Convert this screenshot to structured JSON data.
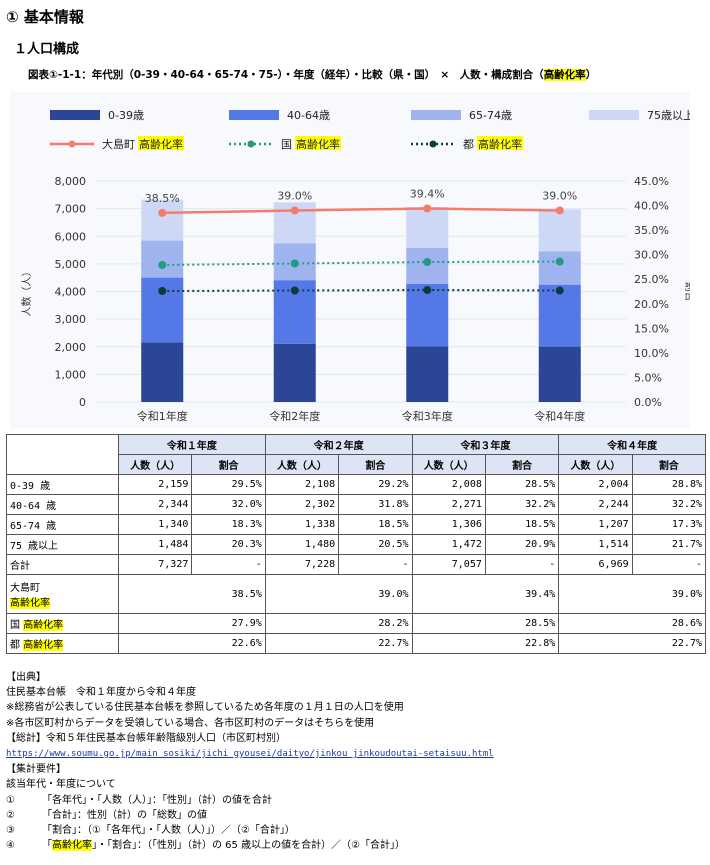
{
  "section_title": "① 基本情報",
  "subsection_title": "１人口構成",
  "figure_caption": {
    "prefix": "図表①-1-1：年代別（0-39・40-64・65-74・75-）・年度（経年）・比較（県・国）　×　人数・構成割合（",
    "highlight": "高齢化率",
    "suffix": "）"
  },
  "colors": {
    "age_0_39": "#2b4597",
    "age_40_64": "#5478e6",
    "age_65_74": "#9fb3ef",
    "age_75_plus": "#cdd8f6",
    "oshima": "#f47c6a",
    "country": "#229b82",
    "tokyo": "#0d3b3a",
    "highlight": "#ffff00",
    "table_header": "#dde4f4"
  },
  "chart_data": {
    "type": "bar",
    "stacked": true,
    "categories": [
      "令和1年度",
      "令和2年度",
      "令和3年度",
      "令和4年度"
    ],
    "series": [
      {
        "name": "0-39歳",
        "values": [
          2159,
          2108,
          2008,
          2004
        ]
      },
      {
        "name": "40-64歳",
        "values": [
          2344,
          2302,
          2271,
          2244
        ]
      },
      {
        "name": "65-74歳",
        "values": [
          1340,
          1338,
          1306,
          1207
        ]
      },
      {
        "name": "75歳以上",
        "values": [
          1484,
          1480,
          1472,
          1514
        ]
      }
    ],
    "line_series": [
      {
        "name_prefix": "大島町 ",
        "name_hl": "高齢化率",
        "values": [
          38.5,
          39.0,
          39.4,
          39.0
        ],
        "style": "solid",
        "labels": [
          "38.5%",
          "39.0%",
          "39.4%",
          "39.0%"
        ]
      },
      {
        "name_prefix": "国 ",
        "name_hl": "高齢化率",
        "values": [
          27.9,
          28.2,
          28.5,
          28.6
        ],
        "style": "dotted"
      },
      {
        "name_prefix": "都 ",
        "name_hl": "高齢化率",
        "values": [
          22.6,
          22.7,
          22.8,
          22.7
        ],
        "style": "dotted"
      }
    ],
    "ylabel": "人数（人）",
    "y2label": "割合",
    "ylim": [
      0,
      8000
    ],
    "y2lim": [
      0,
      45
    ],
    "yticks": [
      "0",
      "1,000",
      "2,000",
      "3,000",
      "4,000",
      "5,000",
      "6,000",
      "7,000",
      "8,000"
    ],
    "y2ticks": [
      "0.0%",
      "5.0%",
      "10.0%",
      "15.0%",
      "20.0%",
      "25.0%",
      "30.0%",
      "35.0%",
      "40.0%",
      "45.0%"
    ],
    "grid": true,
    "legend_position": "top"
  },
  "table": {
    "years": [
      "令和１年度",
      "令和２年度",
      "令和３年度",
      "令和４年度"
    ],
    "sub_headers": [
      "人数（人）",
      "割合"
    ],
    "rows": [
      {
        "label": "0-39 歳",
        "cells": [
          "2,159",
          "29.5%",
          "2,108",
          "29.2%",
          "2,008",
          "28.5%",
          "2,004",
          "28.8%"
        ]
      },
      {
        "label": "40-64 歳",
        "cells": [
          "2,344",
          "32.0%",
          "2,302",
          "31.8%",
          "2,271",
          "32.2%",
          "2,244",
          "32.2%"
        ]
      },
      {
        "label": "65-74 歳",
        "cells": [
          "1,340",
          "18.3%",
          "1,338",
          "18.5%",
          "1,306",
          "18.5%",
          "1,207",
          "17.3%"
        ]
      },
      {
        "label": "75 歳以上",
        "cells": [
          "1,484",
          "20.3%",
          "1,480",
          "20.5%",
          "1,472",
          "20.9%",
          "1,514",
          "21.7%"
        ]
      },
      {
        "label": "合計",
        "cells": [
          "7,327",
          "-",
          "7,228",
          "-",
          "7,057",
          "-",
          "6,969",
          "-"
        ]
      }
    ],
    "rate_rows": [
      {
        "prefix": "大島町",
        "hl": "高齢化率",
        "values": [
          "38.5%",
          "39.0%",
          "39.4%",
          "39.0%"
        ],
        "tall": true
      },
      {
        "prefix": "国 ",
        "hl": "高齢化率",
        "values": [
          "27.9%",
          "28.2%",
          "28.5%",
          "28.6%"
        ]
      },
      {
        "prefix": "都 ",
        "hl": "高齢化率",
        "values": [
          "22.6%",
          "22.7%",
          "22.8%",
          "22.7%"
        ]
      }
    ]
  },
  "notes": {
    "source_head": "【出典】",
    "source_lines": [
      "住民基本台帳　令和１年度から令和４年度",
      "※総務省が公表している住民基本台帳を参照しているため各年度の１月１日の人口を使用",
      "※各市区町村からデータを受領している場合、各市区町村のデータはそちらを使用",
      "【総計】令和５年住民基本台帳年齢階級別人口（市区町村別）"
    ],
    "url": "https://www.soumu.go.jp/main_sosiki/jichi_gyousei/daityo/jinkou_jinkoudoutai-setaisuu.html",
    "req_head": "【集計要件】",
    "req_intro": "該当年代・年度について",
    "items": [
      {
        "num": "①",
        "text": "「各年代」・「人数（人）」：「性別」（計）の値を合計"
      },
      {
        "num": "②",
        "text": "「合計」：性別（計）の「総数」の値"
      },
      {
        "num": "③",
        "text": "「割合」：（①「各年代」・「人数（人）」）／（②「合計」）"
      }
    ],
    "item4": {
      "num": "④",
      "pre": "「",
      "hl": "高齢化率",
      "post": "」・「割合」：（「性別」（計）の 65 歳以上の値を合計）／（②「合計」）"
    }
  }
}
